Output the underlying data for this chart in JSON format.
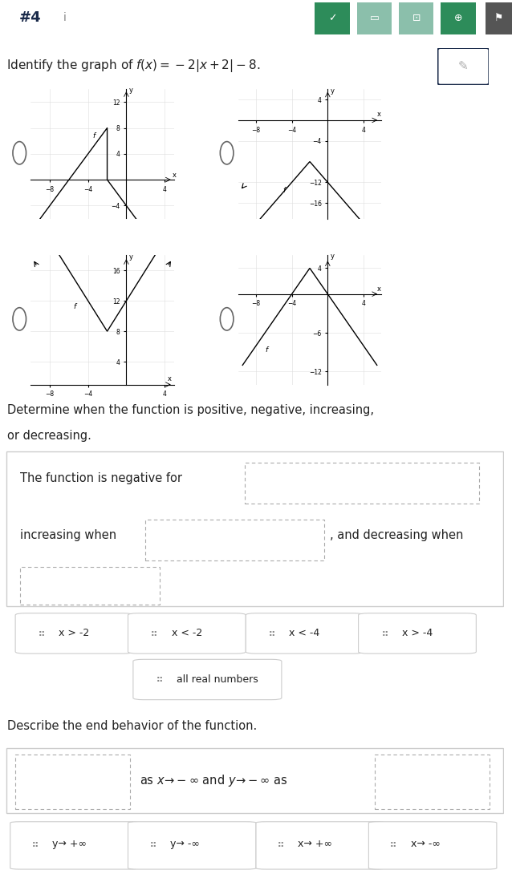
{
  "title_number": "#4",
  "title_info": "i",
  "header_bg": "#1a2a4a",
  "question_text": "Identify the graph of $f(x) = -2|x + 2| - 8$.",
  "determine_text1": "Determine when the function is positive, negative, increasing,",
  "determine_text2": "or decreasing.",
  "negative_label": "The function is negative for",
  "increasing_label": "increasing when",
  "and_decreasing": ", and decreasing when",
  "describe_text": "Describe the end behavior of the function.",
  "answer_chips_row1": [
    "x > -2",
    "x < -2",
    "x < -4",
    "x > -4"
  ],
  "answer_chips_row2": "all real numbers",
  "answer_chips_row3": [
    "y→ +∞",
    "y→ -∞",
    "x→ +∞",
    "x→ -∞"
  ],
  "bg_white": "#ffffff",
  "bg_gray": "#eeeeee",
  "border_dark": "#1a2a4a",
  "text_dark": "#222222",
  "chip_border": "#cccccc",
  "dashed_border": "#aaaaaa",
  "btn_colors": [
    "#2d8c5a",
    "#8bbfab",
    "#8bbfab",
    "#2d8c5a"
  ],
  "graph_line_color": "#000000",
  "graph_arrow_color": "#000000"
}
